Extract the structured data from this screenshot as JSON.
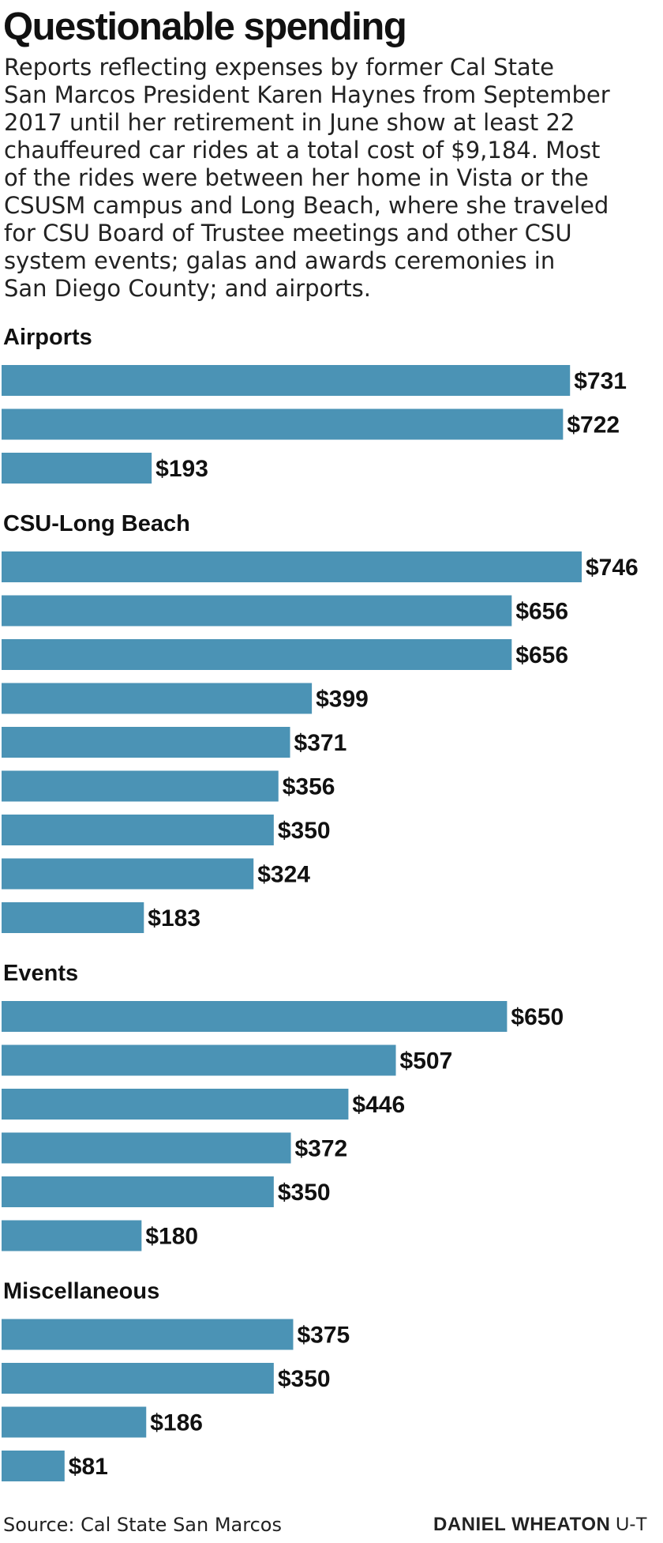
{
  "title": "Questionable spending",
  "subtitle_lines": [
    "Reports reflecting expenses by former Cal State",
    "San Marcos President Karen Haynes from September",
    "2017 until her retirement in June show at least 22",
    "chauffeured car rides at a total cost of $9,184. Most",
    "of the rides were between her home in Vista or the",
    "CSUSM campus and Long Beach, where she traveled",
    "for CSU Board of Trustee meetings and other CSU",
    "system events; galas and awards ceremonies in",
    "San Diego County; and airports."
  ],
  "source": "Source: Cal State San Marcos",
  "credit": {
    "name": "DANIEL WHEATON",
    "org": "U-T"
  },
  "colors": {
    "bar": "#4b93b5",
    "text": "#111111"
  },
  "chart_data": {
    "type": "bar",
    "orientation": "horizontal",
    "value_prefix": "$",
    "xlim": [
      0,
      746
    ],
    "grid": false,
    "groups": [
      {
        "label": "Airports",
        "values": [
          731,
          722,
          193
        ]
      },
      {
        "label": "CSU-Long Beach",
        "values": [
          746,
          656,
          656,
          399,
          371,
          356,
          350,
          324,
          183
        ]
      },
      {
        "label": "Events",
        "values": [
          650,
          507,
          446,
          372,
          350,
          180
        ]
      },
      {
        "label": "Miscellaneous",
        "values": [
          375,
          350,
          186,
          81
        ]
      }
    ]
  }
}
